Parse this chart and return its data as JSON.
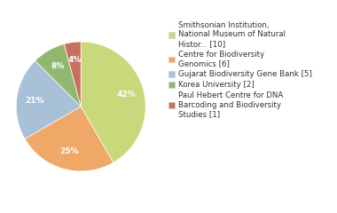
{
  "labels": [
    "Smithsonian Institution,\nNational Museum of Natural\nHistor... [10]",
    "Centre for Biodiversity\nGenomics [6]",
    "Gujarat Biodiversity Gene Bank [5]",
    "Korea University [2]",
    "Paul Hebert Centre for DNA\nBarcoding and Biodiversity\nStudies [1]"
  ],
  "values": [
    10,
    6,
    5,
    2,
    1
  ],
  "colors": [
    "#c8d87a",
    "#f0a868",
    "#a8c0d8",
    "#90b870",
    "#c87060"
  ],
  "background_color": "#ffffff",
  "text_color": "#333333",
  "fontsize": 6.5,
  "legend_fontsize": 6.2
}
